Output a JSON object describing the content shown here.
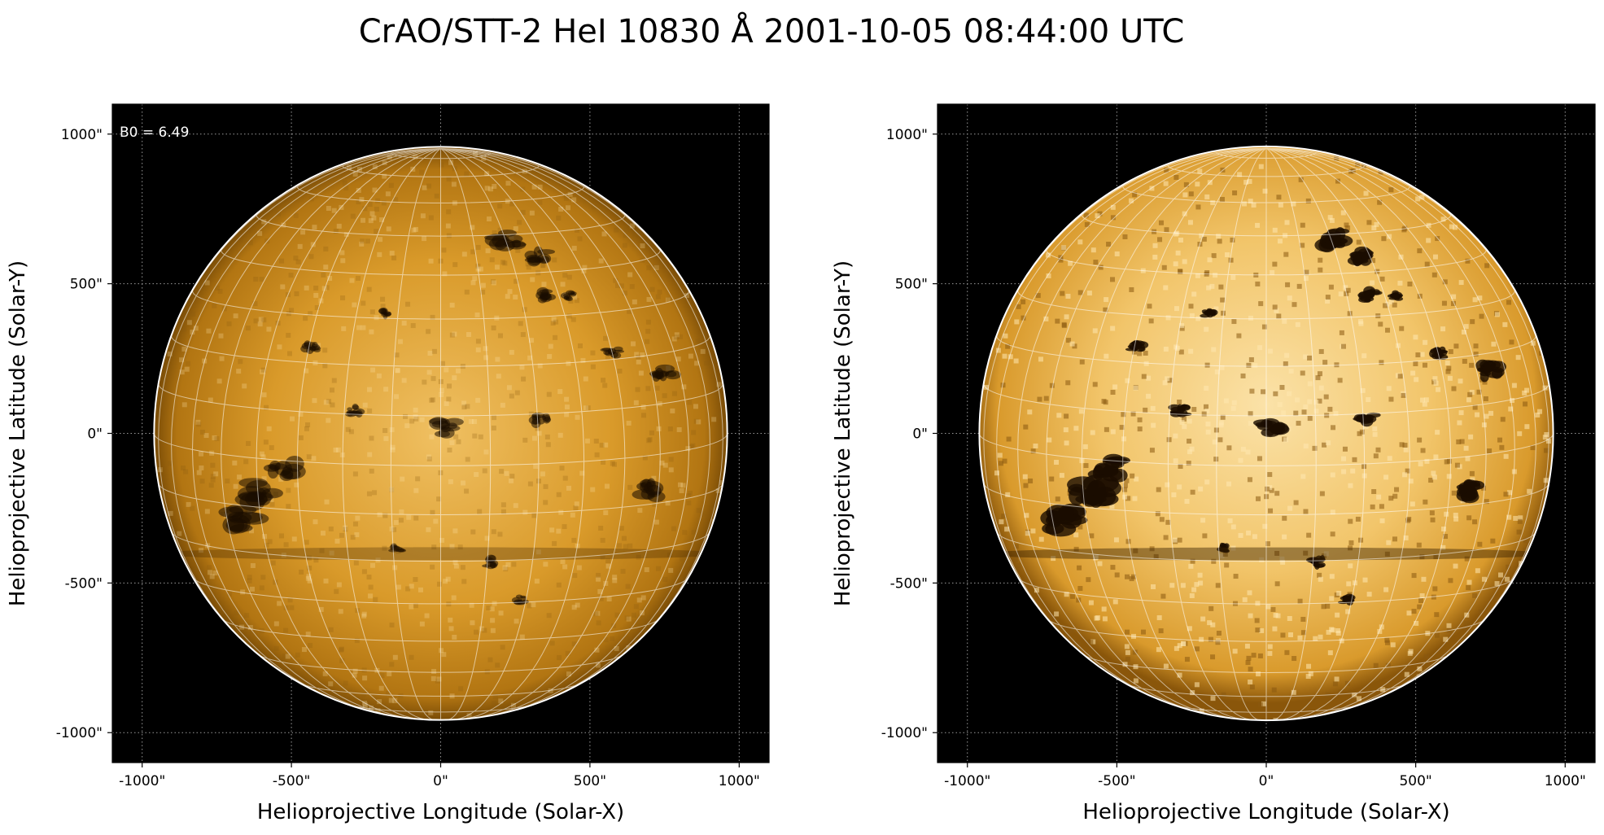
{
  "figure": {
    "title": "CrAO/STT-2 HeI 10830 Å 2001-10-05 08:44:00 UTC"
  },
  "colors": {
    "background": "#000000",
    "disk_orange": "#c98a17",
    "disk_bright": "#f2c770",
    "disk_dark": "#1a0d00",
    "grid": "#ffffff",
    "limb": "#ffffff"
  },
  "panels": [
    {
      "id": "left",
      "annotation": "B0 = 6.49",
      "xlabel": "Helioprojective Longitude (Solar-X)",
      "ylabel": "Helioprojective Latitude (Solar-Y)",
      "xticks": [
        "-1000\"",
        "-500\"",
        "0\"",
        "500\"",
        "1000\""
      ],
      "yticks": [
        "1000\"",
        "500\"",
        "0\"",
        "-500\"",
        "-1000\""
      ],
      "contrast": "normal"
    },
    {
      "id": "right",
      "annotation": "",
      "xlabel": "Helioprojective Longitude (Solar-X)",
      "ylabel": "Helioprojective Latitude (Solar-Y)",
      "xticks": [
        "-1000\"",
        "-500\"",
        "0\"",
        "500\"",
        "1000\""
      ],
      "yticks": [
        "1000\"",
        "500\"",
        "0\"",
        "-500\"",
        "-1000\""
      ],
      "contrast": "enhanced"
    }
  ],
  "axis_values": {
    "x_tick_values": [
      -1000,
      -500,
      0,
      500,
      1000
    ],
    "y_tick_values": [
      1000,
      500,
      0,
      -500,
      -1000
    ],
    "xlim": [
      -1100,
      1100
    ],
    "ylim": [
      -1100,
      1100
    ],
    "solar_radius_arcsec": 960,
    "b0_deg": 6.49
  }
}
